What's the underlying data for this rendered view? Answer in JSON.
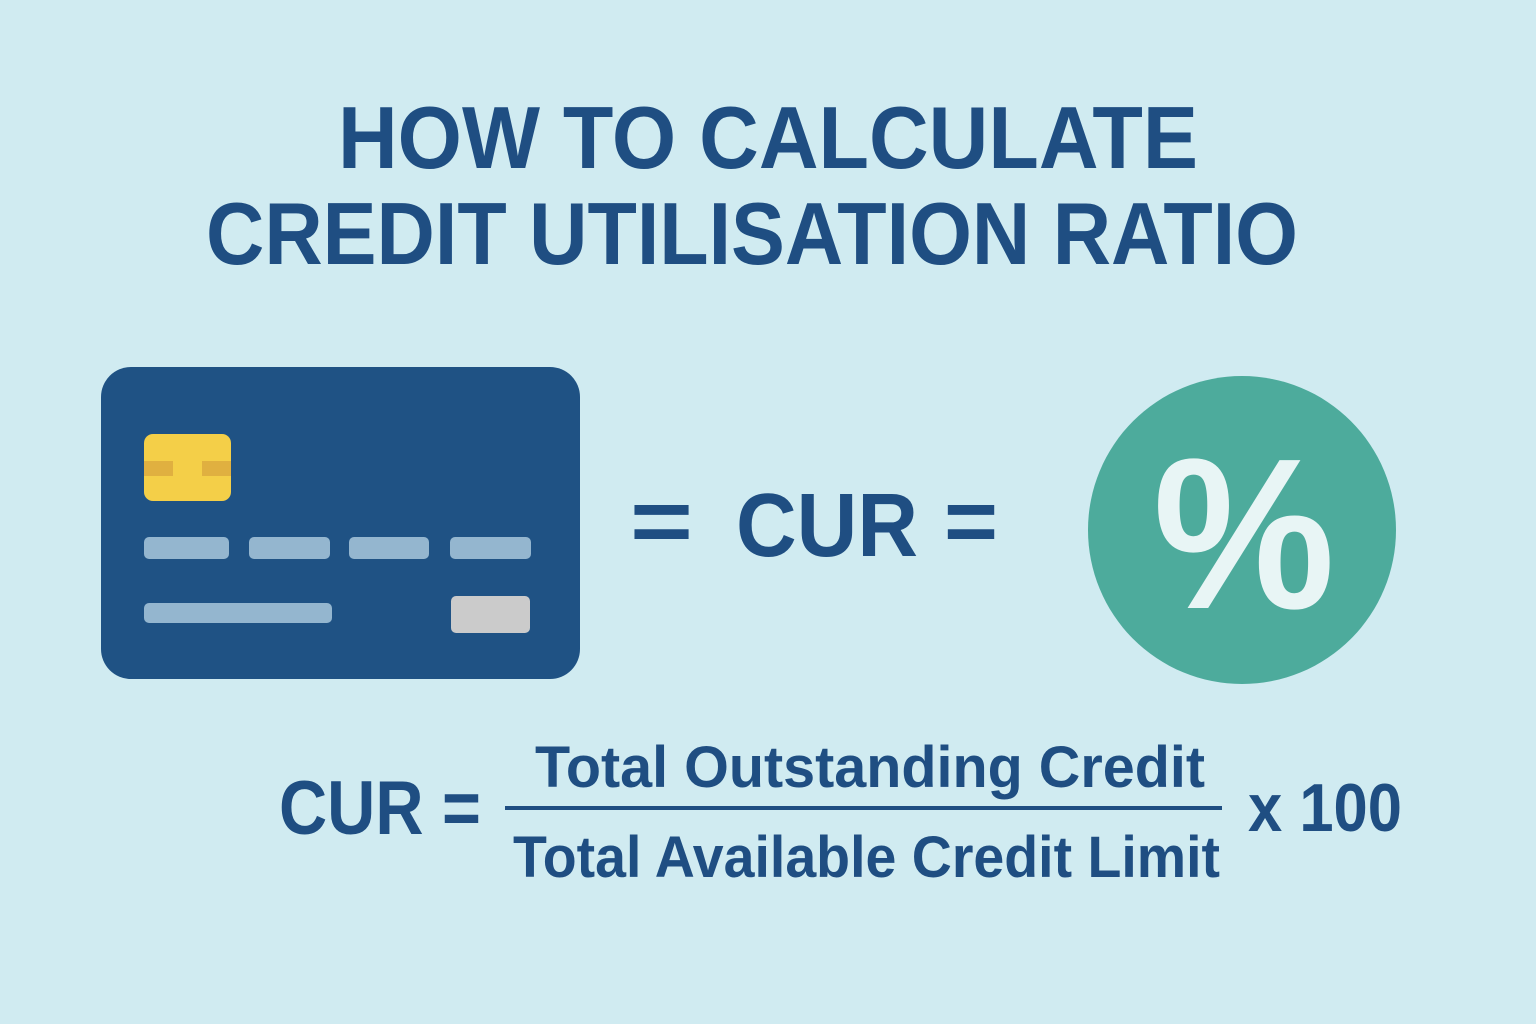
{
  "title": {
    "line1": "HOW TO CALCULATE",
    "line2": "CREDIT UTILISATION RATIO"
  },
  "equation": {
    "left_equals": "=",
    "abbreviation": "CUR",
    "right_equals": "=",
    "percent_symbol": "%"
  },
  "formula": {
    "lhs": "CUR =",
    "numerator": "Total Outstanding Credit",
    "denominator": "Total Available Credit Limit",
    "multiplier": "x 100"
  },
  "icons": {
    "card": "credit-card-icon",
    "percent": "percent-circle-icon"
  },
  "colors": {
    "background": "#d0ebf1",
    "text": "#1f4e82",
    "card": "#1f5284",
    "chip": "#f4cf48",
    "card_lines": "#94b6cf",
    "circle": "#4dab9c",
    "percent": "#e8f5f5"
  }
}
